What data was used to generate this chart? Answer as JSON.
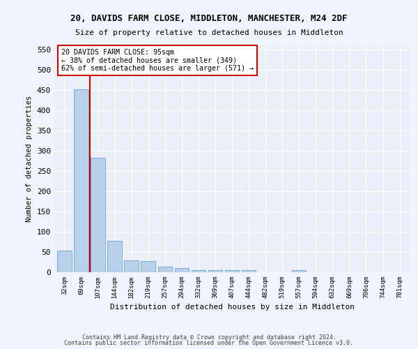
{
  "title1": "20, DAVIDS FARM CLOSE, MIDDLETON, MANCHESTER, M24 2DF",
  "title2": "Size of property relative to detached houses in Middleton",
  "xlabel": "Distribution of detached houses by size in Middleton",
  "ylabel": "Number of detached properties",
  "bar_labels": [
    "32sqm",
    "69sqm",
    "107sqm",
    "144sqm",
    "182sqm",
    "219sqm",
    "257sqm",
    "294sqm",
    "332sqm",
    "369sqm",
    "407sqm",
    "444sqm",
    "482sqm",
    "519sqm",
    "557sqm",
    "594sqm",
    "632sqm",
    "669sqm",
    "706sqm",
    "744sqm",
    "781sqm"
  ],
  "bar_values": [
    53,
    452,
    283,
    78,
    30,
    28,
    14,
    10,
    5,
    5,
    6,
    5,
    0,
    0,
    5,
    0,
    0,
    0,
    0,
    0,
    0
  ],
  "bar_color": "#b8d0ea",
  "bar_edge_color": "#7aadd4",
  "vline_color": "#cc0000",
  "annotation_text": "20 DAVIDS FARM CLOSE: 95sqm\n← 38% of detached houses are smaller (349)\n62% of semi-detached houses are larger (571) →",
  "annotation_box_color": "#ffffff",
  "annotation_box_edge": "#cc0000",
  "ylim_max": 560,
  "yticks": [
    0,
    50,
    100,
    150,
    200,
    250,
    300,
    350,
    400,
    450,
    500,
    550
  ],
  "bg_color": "#eaeff8",
  "grid_color": "#ffffff",
  "footer1": "Contains HM Land Registry data © Crown copyright and database right 2024.",
  "footer2": "Contains public sector information licensed under the Open Government Licence v3.0."
}
